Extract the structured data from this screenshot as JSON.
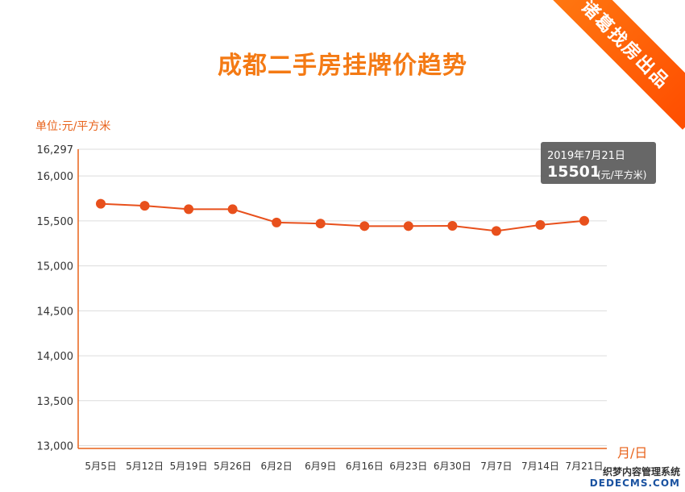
{
  "title": "成都二手房挂牌价趋势",
  "badge": "诸葛找房出品",
  "tooltip": {
    "date": "2019年7月21日",
    "value": "15501",
    "unit": "(元/平方米)"
  },
  "watermark": {
    "line1": "织梦内容管理系统",
    "line2": "DEDECMS.COM"
  },
  "colors": {
    "accent": "#f47a14",
    "line": "#e8501c",
    "axis": "#e8621a",
    "grid": "#dcdcdc"
  },
  "chart_data": {
    "type": "line",
    "title": "成都二手房挂牌价趋势",
    "ylabel": "单位:元/平方米",
    "xlabel": "月/日",
    "categories": [
      "5月5日",
      "5月12日",
      "5月19日",
      "5月26日",
      "6月2日",
      "6月9日",
      "6月16日",
      "6月23日",
      "6月30日",
      "7月7日",
      "7月14日",
      "7月21日"
    ],
    "values": [
      15690,
      15668,
      15630,
      15630,
      15482,
      15470,
      15442,
      15442,
      15445,
      15388,
      15455,
      15501
    ],
    "ylim": [
      12969,
      16297
    ],
    "yticks": [
      13000,
      13500,
      14000,
      14500,
      15000,
      15500,
      16000,
      16297
    ],
    "ytick_labels": [
      "13,000",
      "13,500",
      "14,000",
      "14,500",
      "15,000",
      "15,500",
      "16,000",
      "16,297"
    ],
    "grid": true,
    "legend": "none"
  }
}
